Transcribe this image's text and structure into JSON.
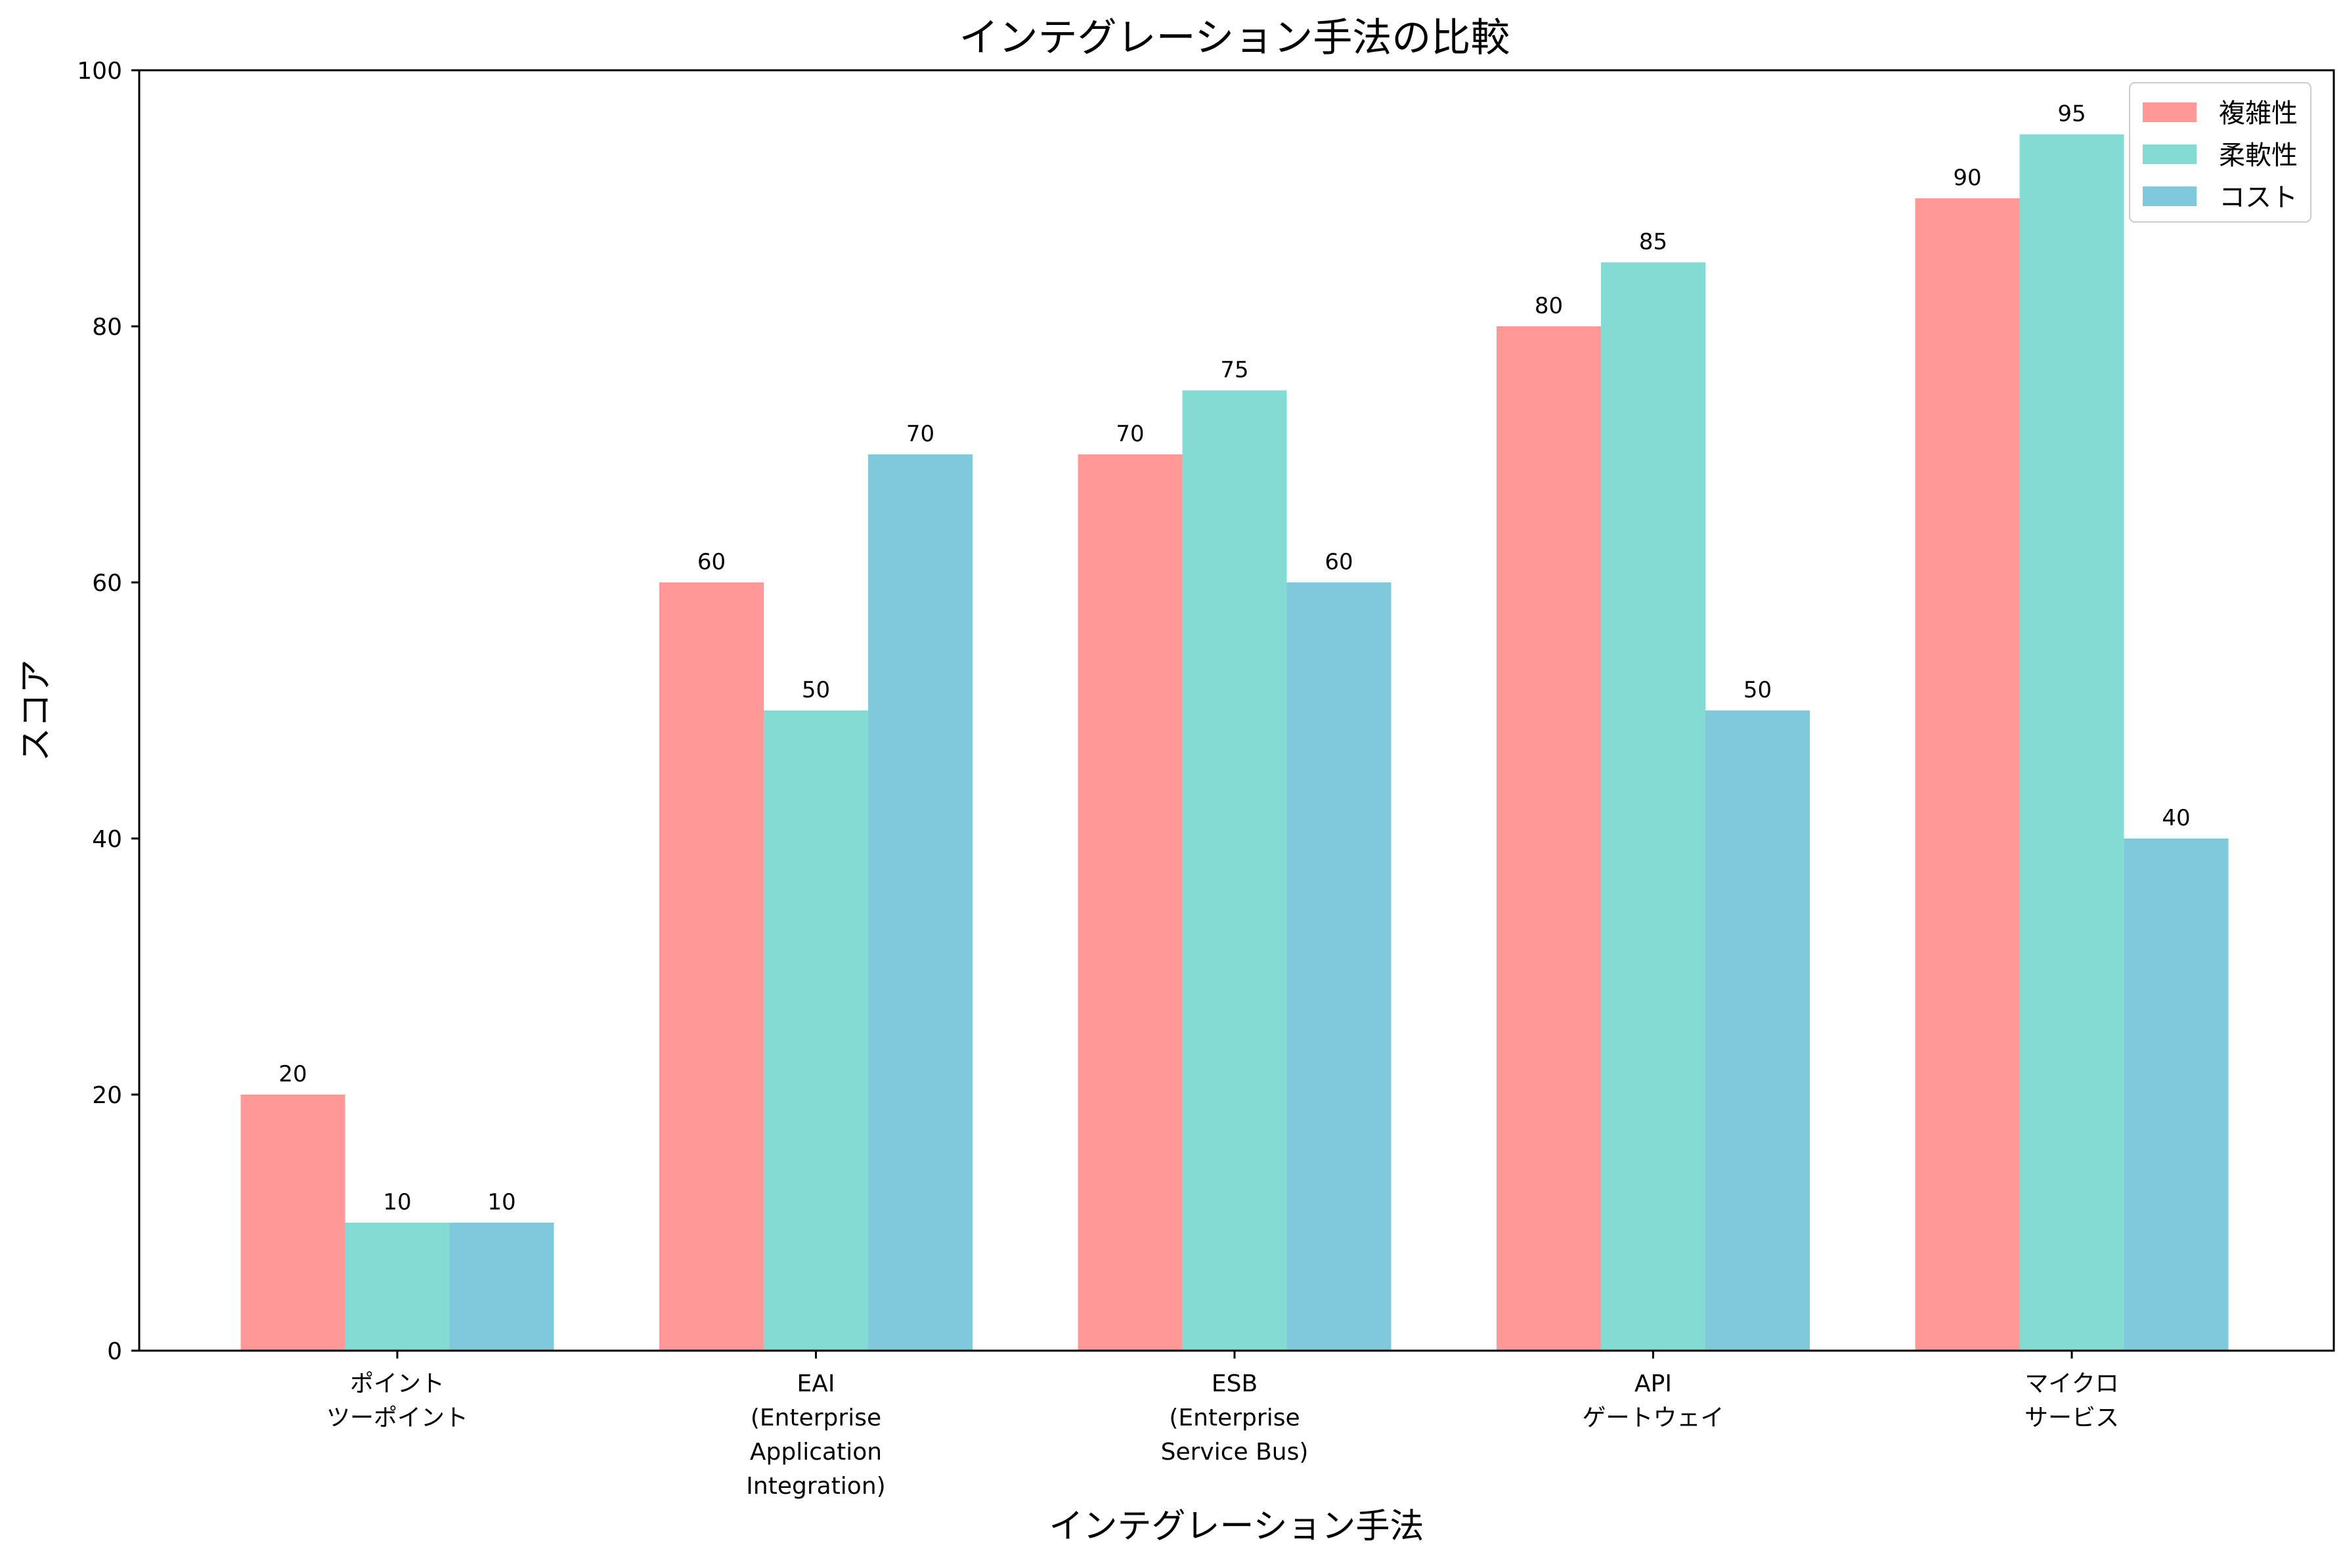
{
  "chart_data": {
    "type": "bar",
    "title": "インテグレーション手法の比較",
    "xlabel": "インテグレーション手法",
    "ylabel": "スコア",
    "ylim": [
      0,
      100
    ],
    "yticks": [
      0,
      20,
      40,
      60,
      80,
      100
    ],
    "categories": [
      [
        "ポイント",
        "ツーポイント"
      ],
      [
        "EAI",
        "(Enterprise",
        "Application",
        "Integration)"
      ],
      [
        "ESB",
        "(Enterprise",
        "Service Bus)"
      ],
      [
        "API",
        "ゲートウェイ"
      ],
      [
        "マイクロ",
        "サービス"
      ]
    ],
    "series": [
      {
        "name": "複雑性",
        "color": "#ff9896",
        "values": [
          20,
          60,
          70,
          80,
          90
        ]
      },
      {
        "name": "柔軟性",
        "color": "#84dbd4",
        "values": [
          10,
          50,
          75,
          85,
          95
        ]
      },
      {
        "name": "コスト",
        "color": "#80c9dd",
        "values": [
          10,
          70,
          60,
          50,
          40
        ]
      }
    ],
    "legend": "top-right",
    "grid": false
  }
}
